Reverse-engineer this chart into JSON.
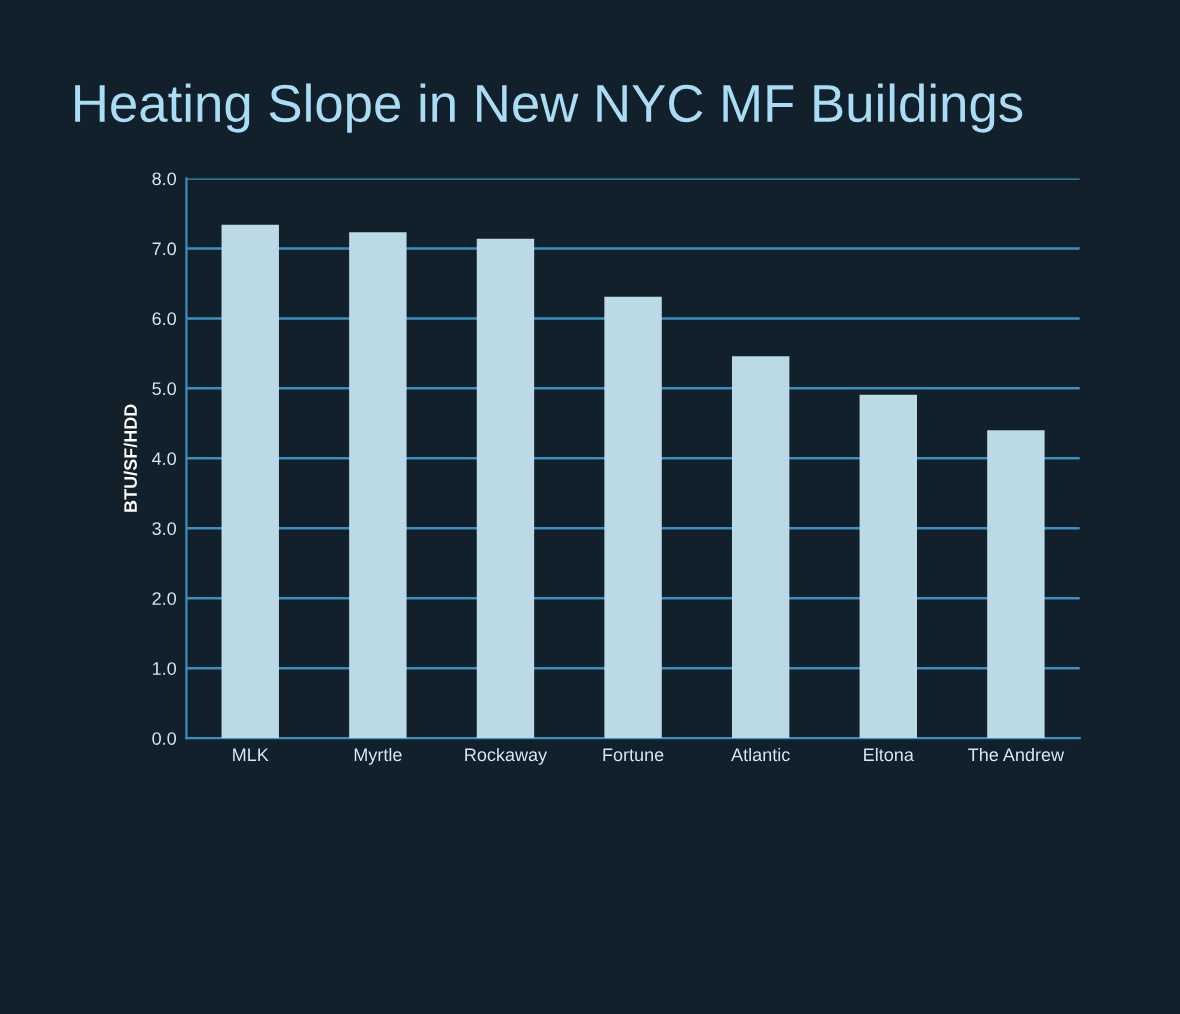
{
  "chart_data": {
    "type": "bar",
    "title": "Heating Slope in New NYC MF Buildings",
    "ylabel": "BTU/SF/HDD",
    "categories": [
      "MLK",
      "Myrtle",
      "Rockaway",
      "Fortune",
      "Atlantic",
      "Eltona",
      "The Andrew"
    ],
    "values": [
      7.34,
      7.23,
      7.14,
      6.31,
      5.46,
      4.91,
      4.4
    ],
    "color": "#bcd9e6",
    "ylim": [
      0,
      8
    ],
    "yticks": [
      {
        "value": 0,
        "label": "0.0"
      },
      {
        "value": 1,
        "label": "1.0"
      },
      {
        "value": 2,
        "label": "2.0"
      },
      {
        "value": 3,
        "label": "3.0"
      },
      {
        "value": 4,
        "label": "4.0"
      },
      {
        "value": 5,
        "label": "5.0"
      },
      {
        "value": 6,
        "label": "6.0"
      },
      {
        "value": 7,
        "label": "7.0"
      },
      {
        "value": 8,
        "label": "8.0"
      }
    ],
    "grid": "y",
    "legend": false
  }
}
